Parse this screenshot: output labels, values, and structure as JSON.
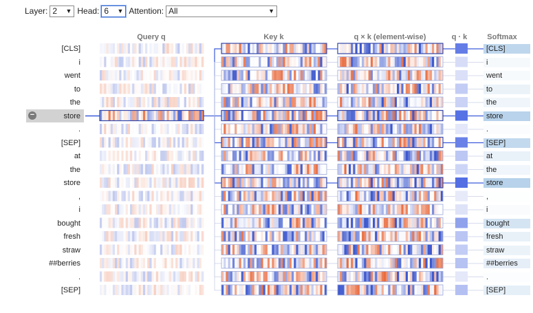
{
  "controls": {
    "layer_label": "Layer:",
    "layer_value": "2",
    "head_label": "Head:",
    "head_value": "6",
    "attention_label": "Attention:",
    "attention_value": "All"
  },
  "columns": {
    "query": "Query q",
    "key": "Key k",
    "product": "q × k (element-wise)",
    "dot": "q · k",
    "softmax": "Softmax"
  },
  "tokens": [
    "[CLS]",
    "i",
    "went",
    "to",
    "the",
    "store",
    ".",
    "[SEP]",
    "at",
    "the",
    "store",
    ",",
    "i",
    "bought",
    "fresh",
    "straw",
    "##berries",
    ".",
    "[SEP]"
  ],
  "selected_query_index": 5,
  "attention_weights": [
    0.82,
    0.12,
    0.1,
    0.25,
    0.2,
    0.9,
    0.05,
    0.78,
    0.28,
    0.18,
    0.92,
    0.03,
    0.08,
    0.55,
    0.3,
    0.25,
    0.32,
    0.04,
    0.33
  ],
  "colors": {
    "blue": "#2f50c8",
    "red": "#e05a2a",
    "highlight": "#b9d3ea",
    "selection_gray": "#d2d2d2",
    "line": "#3b5bdb",
    "border": "#9aa7d8"
  }
}
